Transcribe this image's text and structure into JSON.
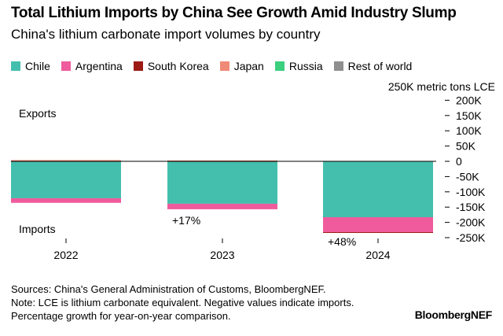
{
  "title": "Total Lithium Imports by China See Growth Amid Industry Slump",
  "subtitle": "China's lithium carbonate import volumes by country",
  "notes": [
    "Sources: China's General Administration of Customs, BloombergNEF.",
    "Note: LCE is lithium carbonate equivalent. Negative values indicate imports.",
    "Percentage growth for year-on-year comparison."
  ],
  "brand": "BloombergNEF",
  "chart_data": {
    "type": "bar",
    "stacked": true,
    "categories": [
      "2022",
      "2023",
      "2024"
    ],
    "ylabel": "250K metric tons LCE",
    "ylim": [
      -250000,
      200000
    ],
    "yticks": [
      200000,
      150000,
      100000,
      50000,
      0,
      -50000,
      -100000,
      -150000,
      -200000,
      -250000
    ],
    "ytick_labels": [
      "200K",
      "150K",
      "100K",
      "50K",
      "0",
      "-50K",
      "-100K",
      "-150K",
      "-200K",
      "-250K"
    ],
    "annotations": {
      "exports": "Exports",
      "imports": "Imports",
      "growth": [
        "",
        "+17%",
        "+48%"
      ]
    },
    "series": [
      {
        "name": "Chile",
        "color": "#44bfad",
        "values": [
          -121000,
          -139000,
          -183000
        ]
      },
      {
        "name": "Argentina",
        "color": "#ef5b9c",
        "values": [
          -15000,
          -18000,
          -49000
        ]
      },
      {
        "name": "South Korea",
        "color": "#9c1b14",
        "values": [
          1000,
          1000,
          -1000
        ]
      },
      {
        "name": "Japan",
        "color": "#ef8a76",
        "values": [
          3000,
          2000,
          0
        ]
      },
      {
        "name": "Russia",
        "color": "#3ccf7d",
        "values": [
          0,
          0,
          0
        ]
      },
      {
        "name": "Rest of world",
        "color": "#8f8f8f",
        "values": [
          0,
          0,
          1000
        ]
      }
    ]
  }
}
